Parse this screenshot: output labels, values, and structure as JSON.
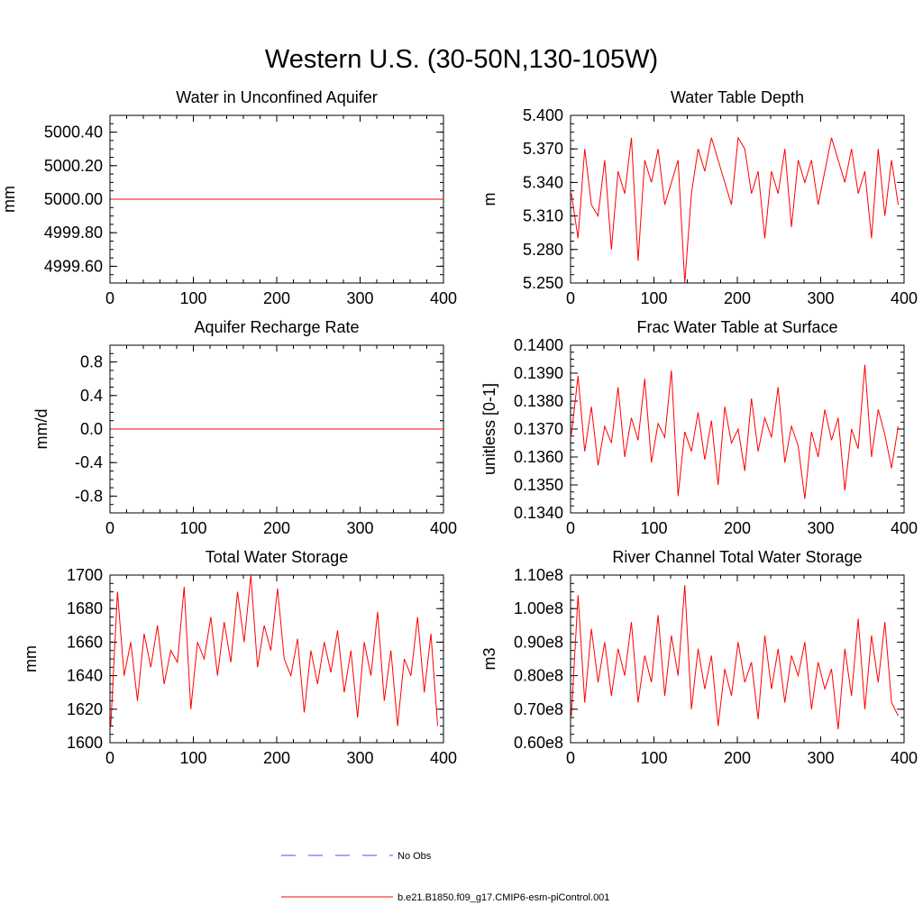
{
  "title": "Western U.S. (30-50N,130-105W)",
  "legend": {
    "entries": [
      {
        "label": "No Obs",
        "color": "#4a4aff",
        "dash": "dashed"
      },
      {
        "label": "b.e21.B1850.f09_g17.CMIP6-esm-piControl.001",
        "color": "#ff0000",
        "dash": "solid"
      }
    ]
  },
  "chart_data": [
    {
      "type": "line",
      "title": "Water in Unconfined Aquifer",
      "xlabel": "",
      "ylabel": "mm",
      "xlim": [
        0,
        400
      ],
      "ylim": [
        4999.5,
        5000.5
      ],
      "xticks": [
        "0",
        "100",
        "200",
        "300",
        "400"
      ],
      "yticks": [
        4999.6,
        4999.8,
        5000.0,
        5000.2,
        5000.4
      ],
      "ytick_labels": [
        "4999.60",
        "4999.80",
        "5000.00",
        "5000.20",
        "5000.40"
      ],
      "series": [
        {
          "name": "b.e21.B1850.f09_g17.CMIP6-esm-piControl.001",
          "color": "#ff0000",
          "x": [
            1,
            400
          ],
          "values": [
            5000.0,
            5000.0
          ]
        }
      ]
    },
    {
      "type": "line",
      "title": "Water Table Depth",
      "xlabel": "",
      "ylabel": "m",
      "xlim": [
        0,
        400
      ],
      "ylim": [
        5.25,
        5.4
      ],
      "xticks": [
        "0",
        "100",
        "200",
        "300",
        "400"
      ],
      "yticks": [
        5.25,
        5.28,
        5.31,
        5.34,
        5.37,
        5.4
      ],
      "ytick_labels": [
        "5.250",
        "5.280",
        "5.310",
        "5.340",
        "5.370",
        "5.400"
      ],
      "series": [
        {
          "name": "b.e21.B1850.f09_g17.CMIP6-esm-piControl.001",
          "color": "#ff0000",
          "x_start": 1,
          "x_step": 8,
          "values": [
            5.33,
            5.29,
            5.37,
            5.32,
            5.31,
            5.36,
            5.28,
            5.35,
            5.33,
            5.38,
            5.27,
            5.36,
            5.34,
            5.37,
            5.32,
            5.34,
            5.36,
            5.25,
            5.33,
            5.37,
            5.35,
            5.38,
            5.36,
            5.34,
            5.32,
            5.38,
            5.37,
            5.33,
            5.35,
            5.29,
            5.35,
            5.33,
            5.37,
            5.3,
            5.36,
            5.34,
            5.36,
            5.32,
            5.35,
            5.38,
            5.36,
            5.34,
            5.37,
            5.33,
            5.35,
            5.29,
            5.37,
            5.31,
            5.36,
            5.32
          ]
        }
      ]
    },
    {
      "type": "line",
      "title": "Aquifer Recharge Rate",
      "xlabel": "",
      "ylabel": "mm/d",
      "xlim": [
        0,
        400
      ],
      "ylim": [
        -1.0,
        1.0
      ],
      "xticks": [
        "0",
        "100",
        "200",
        "300",
        "400"
      ],
      "yticks": [
        -0.8,
        -0.4,
        0.0,
        0.4,
        0.8
      ],
      "ytick_labels": [
        "-0.8",
        "-0.4",
        "0.0",
        "0.4",
        "0.8"
      ],
      "series": [
        {
          "name": "b.e21.B1850.f09_g17.CMIP6-esm-piControl.001",
          "color": "#ff0000",
          "x": [
            1,
            400
          ],
          "values": [
            0.0,
            0.0
          ]
        }
      ]
    },
    {
      "type": "line",
      "title": "Frac Water Table at Surface",
      "xlabel": "",
      "ylabel": "unitless [0-1]",
      "xlim": [
        0,
        400
      ],
      "ylim": [
        0.134,
        0.14
      ],
      "xticks": [
        "0",
        "100",
        "200",
        "300",
        "400"
      ],
      "yticks": [
        0.134,
        0.135,
        0.136,
        0.137,
        0.138,
        0.139,
        0.14
      ],
      "ytick_labels": [
        "0.1340",
        "0.1350",
        "0.1360",
        "0.1370",
        "0.1380",
        "0.1390",
        "0.1400"
      ],
      "series": [
        {
          "name": "b.e21.B1850.f09_g17.CMIP6-esm-piControl.001",
          "color": "#ff0000",
          "x_start": 1,
          "x_step": 8,
          "values": [
            0.1368,
            0.1389,
            0.1362,
            0.1378,
            0.1357,
            0.1371,
            0.1365,
            0.1385,
            0.136,
            0.1374,
            0.1366,
            0.1388,
            0.1358,
            0.1372,
            0.1367,
            0.1391,
            0.1346,
            0.1369,
            0.1362,
            0.1376,
            0.1359,
            0.1373,
            0.135,
            0.1378,
            0.1365,
            0.137,
            0.1355,
            0.1381,
            0.1362,
            0.1374,
            0.1367,
            0.1385,
            0.1358,
            0.1371,
            0.1364,
            0.1345,
            0.1369,
            0.136,
            0.1377,
            0.1366,
            0.1374,
            0.1348,
            0.137,
            0.1363,
            0.1393,
            0.136,
            0.1377,
            0.1368,
            0.1356,
            0.1371
          ]
        }
      ]
    },
    {
      "type": "line",
      "title": "Total Water Storage",
      "xlabel": "",
      "ylabel": "mm",
      "xlim": [
        0,
        400
      ],
      "ylim": [
        1600,
        1700
      ],
      "xticks": [
        "0",
        "100",
        "200",
        "300",
        "400"
      ],
      "yticks": [
        1600,
        1620,
        1640,
        1660,
        1680,
        1700
      ],
      "ytick_labels": [
        "1600",
        "1620",
        "1640",
        "1660",
        "1680",
        "1700"
      ],
      "series": [
        {
          "name": "b.e21.B1850.f09_g17.CMIP6-esm-piControl.001",
          "color": "#ff0000",
          "x_start": 1,
          "x_step": 8,
          "values": [
            1610,
            1690,
            1640,
            1660,
            1625,
            1665,
            1645,
            1670,
            1635,
            1655,
            1648,
            1693,
            1620,
            1660,
            1650,
            1675,
            1640,
            1672,
            1648,
            1690,
            1660,
            1700,
            1645,
            1670,
            1655,
            1692,
            1650,
            1640,
            1662,
            1618,
            1655,
            1635,
            1660,
            1642,
            1667,
            1630,
            1655,
            1615,
            1660,
            1640,
            1678,
            1625,
            1655,
            1610,
            1650,
            1640,
            1675,
            1630,
            1665,
            1610
          ]
        }
      ]
    },
    {
      "type": "line",
      "title": "River Channel Total Water Storage",
      "xlabel": "",
      "ylabel": "m3",
      "xlim": [
        0,
        400
      ],
      "ylim": [
        60000000,
        110000000
      ],
      "xticks": [
        "0",
        "100",
        "200",
        "300",
        "400"
      ],
      "yticks": [
        60000000,
        70000000,
        80000000,
        90000000,
        100000000,
        110000000
      ],
      "ytick_labels": [
        "0.60e8",
        "0.70e8",
        "0.80e8",
        "0.90e8",
        "1.00e8",
        "1.10e8"
      ],
      "series": [
        {
          "name": "b.e21.B1850.f09_g17.CMIP6-esm-piControl.001",
          "color": "#ff0000",
          "x_start": 1,
          "x_step": 8,
          "values": [
            68000000,
            104000000,
            72000000,
            94000000,
            78000000,
            90000000,
            74000000,
            88000000,
            80000000,
            96000000,
            72000000,
            86000000,
            78000000,
            98000000,
            74000000,
            92000000,
            80000000,
            107000000,
            70000000,
            88000000,
            76000000,
            86000000,
            65000000,
            82000000,
            74000000,
            90000000,
            78000000,
            84000000,
            67000000,
            92000000,
            76000000,
            88000000,
            72000000,
            86000000,
            80000000,
            90000000,
            70000000,
            84000000,
            76000000,
            82000000,
            64000000,
            88000000,
            74000000,
            97000000,
            70000000,
            92000000,
            78000000,
            96000000,
            72000000,
            68000000
          ]
        }
      ]
    }
  ]
}
